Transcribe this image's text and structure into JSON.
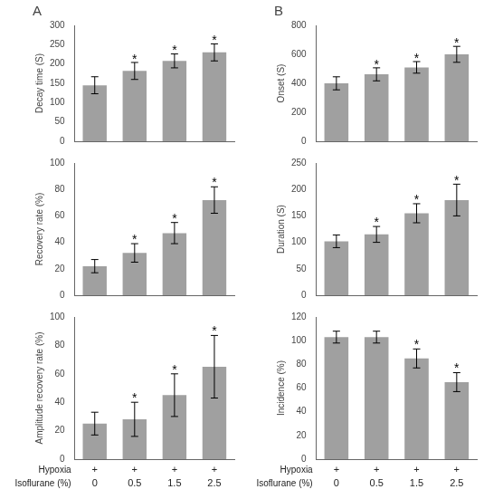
{
  "chart_data": [
    {
      "type": "bar",
      "title": "A",
      "ylabel": "Decay time (S)",
      "categories": [
        null,
        null,
        null,
        null
      ],
      "values": [
        145,
        182,
        208,
        230
      ],
      "errors": [
        22,
        22,
        18,
        22
      ],
      "annotations": [
        null,
        "*",
        "*",
        "*"
      ],
      "color": "#a0a0a0",
      "ylim": [
        0,
        300
      ],
      "yticks": [
        0,
        50,
        100,
        150,
        200,
        250,
        300
      ],
      "grid": false
    },
    {
      "type": "bar",
      "title": "B",
      "ylabel": "Onset (S)",
      "categories": [
        null,
        null,
        null,
        null
      ],
      "values": [
        400,
        462,
        510,
        600
      ],
      "errors": [
        45,
        45,
        40,
        55
      ],
      "annotations": [
        null,
        "*",
        "*",
        "*"
      ],
      "color": "#a0a0a0",
      "ylim": [
        0,
        800
      ],
      "yticks": [
        0,
        200,
        400,
        600,
        800
      ],
      "grid": false
    },
    {
      "type": "bar",
      "ylabel": "Recovery rate (%)",
      "categories": [
        null,
        null,
        null,
        null
      ],
      "values": [
        22,
        32,
        47,
        72
      ],
      "errors": [
        5,
        7,
        8,
        10
      ],
      "annotations": [
        null,
        "*",
        "*",
        "*"
      ],
      "color": "#a0a0a0",
      "ylim": [
        0,
        100
      ],
      "yticks": [
        0,
        20,
        40,
        60,
        80,
        100
      ],
      "grid": false
    },
    {
      "type": "bar",
      "ylabel": "Duration (S)",
      "categories": [
        null,
        null,
        null,
        null
      ],
      "values": [
        102,
        115,
        155,
        180
      ],
      "errors": [
        12,
        15,
        18,
        30
      ],
      "annotations": [
        null,
        "*",
        "*",
        "*"
      ],
      "color": "#a0a0a0",
      "ylim": [
        0,
        250
      ],
      "yticks": [
        0,
        50,
        100,
        150,
        200,
        250
      ],
      "grid": false
    },
    {
      "type": "bar",
      "ylabel": "Amplitude recovery rate (%)",
      "xlabel": [
        "Hypoxia",
        "Isoflurane (%)"
      ],
      "categories": [
        [
          "+",
          "0"
        ],
        [
          "+",
          "0.5"
        ],
        [
          "+",
          "1.5"
        ],
        [
          "+",
          "2.5"
        ]
      ],
      "values": [
        25,
        28,
        45,
        65
      ],
      "errors": [
        8,
        12,
        15,
        22
      ],
      "annotations": [
        null,
        "*",
        "*",
        "*"
      ],
      "color": "#a0a0a0",
      "ylim": [
        0,
        100
      ],
      "yticks": [
        0,
        20,
        40,
        60,
        80,
        100
      ],
      "grid": false
    },
    {
      "type": "bar",
      "ylabel": "Incidence (%)",
      "xlabel": [
        "Hypoxia",
        "Isoflurane (%)"
      ],
      "categories": [
        [
          "+",
          "0"
        ],
        [
          "+",
          "0.5"
        ],
        [
          "+",
          "1.5"
        ],
        [
          "+",
          "2.5"
        ]
      ],
      "values": [
        103,
        103,
        85,
        65
      ],
      "errors": [
        5,
        5,
        8,
        8
      ],
      "annotations": [
        null,
        null,
        "*",
        "*"
      ],
      "color": "#a0a0a0",
      "ylim": [
        0,
        120
      ],
      "yticks": [
        0,
        20,
        40,
        60,
        80,
        100,
        120
      ],
      "grid": false
    }
  ]
}
